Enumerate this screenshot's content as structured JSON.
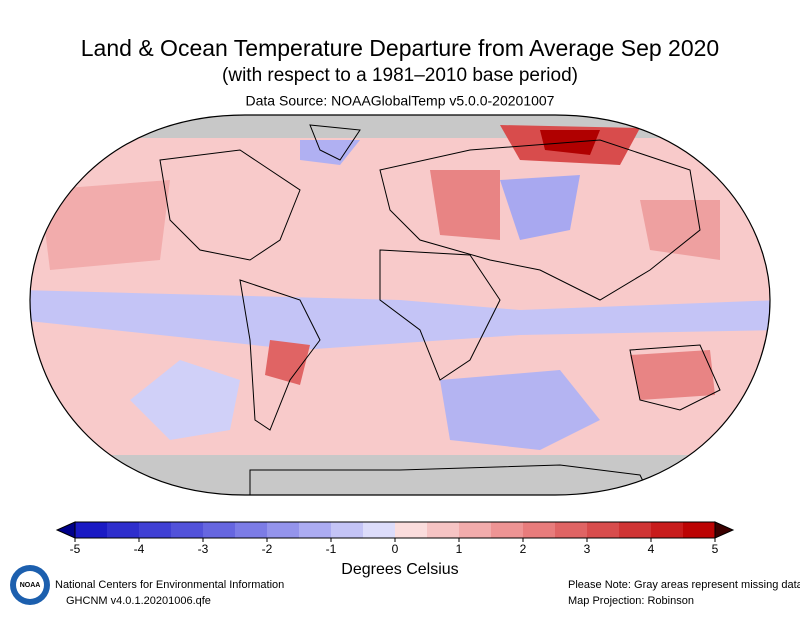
{
  "header": {
    "title": "Land & Ocean Temperature Departure from Average Sep 2020",
    "subtitle": "(with respect to a 1981–2010 base period)",
    "source": "Data Source: NOAAGlobalTemp v5.0.0-20201007"
  },
  "colorbar": {
    "lim": [
      -5,
      5
    ],
    "ticks": [
      -5,
      -4,
      -3,
      -2,
      -1,
      0,
      1,
      2,
      3,
      4,
      5
    ],
    "label": "Degrees Celsius",
    "colors": [
      "#1a1ac4",
      "#2e2ecc",
      "#4040d4",
      "#5252da",
      "#6666e0",
      "#7c7ce6",
      "#9494ec",
      "#acacf2",
      "#c4c4f6",
      "#dcdcfa",
      "#fadcdc",
      "#f6c4c4",
      "#f2acac",
      "#ee9494",
      "#e87c7c",
      "#e06464",
      "#d84c4c",
      "#d03434",
      "#c81c1c",
      "#bc0404"
    ],
    "under_color": "#00008a",
    "over_color": "#3c0000"
  },
  "footer": {
    "logo": "NOAA",
    "org": "National Centers for Environmental Information",
    "version": "GHCNM v4.0.1.20201006.qfe",
    "note": "Please Note: Gray areas represent missing data",
    "projection": "Map Projection: Robinson"
  }
}
